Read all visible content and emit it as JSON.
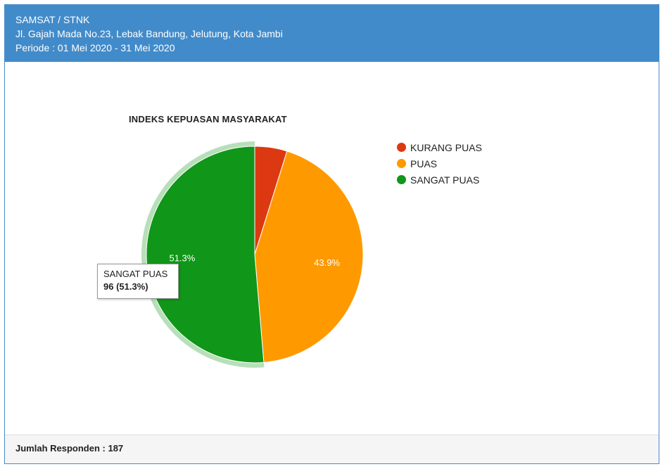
{
  "header": {
    "line1": "SAMSAT / STNK",
    "line2": "Jl. Gajah Mada No.23, Lebak Bandung, Jelutung, Kota Jambi",
    "line3": "Periode : 01 Mei 2020 - 31 Mei 2020"
  },
  "chart_data": {
    "type": "pie",
    "title": "INDEKS KEPUASAN MASYARAKAT",
    "categories": [
      "KURANG PUAS",
      "PUAS",
      "SANGAT PUAS"
    ],
    "values": [
      9,
      82,
      96
    ],
    "percent_labels": [
      "",
      "43.9%",
      "51.3%"
    ],
    "colors": [
      "#dc3912",
      "#ff9900",
      "#109618"
    ],
    "legend_position": "right",
    "highlighted": "SANGAT PUAS"
  },
  "tooltip": {
    "name": "SANGAT PUAS",
    "value": "96 (51.3%)"
  },
  "footer": {
    "respondents": "Jumlah Responden : 187"
  }
}
